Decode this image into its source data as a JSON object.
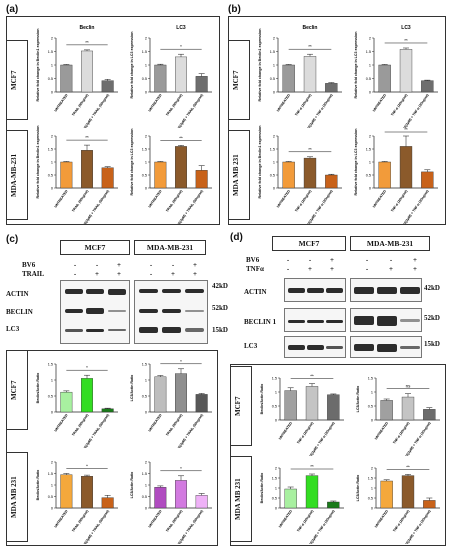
{
  "figure": {
    "panel_labels": {
      "a": "(a)",
      "b": "(b)",
      "c": "(c)",
      "d": "(d)"
    },
    "rows": {
      "mcf7": "MCF7",
      "mda_dash": "MDA-MB-231",
      "mda_space": "MDA MB 231"
    },
    "kd": {
      "k42": "42kD",
      "k52": "52kD",
      "k15": "15kD"
    },
    "blot_labels": {
      "actin": "ACTIN",
      "beclin": "BECLIN",
      "beclin1": "BECLIN 1",
      "lc3": "LC3",
      "bv6": "BV6",
      "trail": "TRAIL",
      "tnfa": "TNFα"
    },
    "blot_headers": {
      "c_left": "MCF7",
      "c_right": "MDA-MB-231",
      "d_left": "MCF7",
      "d_right": "MDA-MB-231"
    },
    "signs": {
      "plus": "+",
      "minus": "-"
    }
  },
  "chart_data": [
    {
      "id": "a_mcf7_beclin",
      "type": "bar",
      "title": "Beclin",
      "ylabel": "Relative fold change in Beclin1 expression",
      "categories": [
        "UNTREATED",
        "TRAIL (50ng/ml)",
        "BV6(2µM) + TRAIL (50ng/ml)"
      ],
      "values": [
        1.0,
        1.52,
        0.42
      ],
      "errors": [
        0.02,
        0.04,
        0.05
      ],
      "colors": [
        "#9a9a9a",
        "#dcdcdc",
        "#6e6e6e"
      ],
      "ylim": [
        0,
        2
      ],
      "sig": "**"
    },
    {
      "id": "a_mcf7_lc3",
      "type": "bar",
      "title": "LC3",
      "ylabel": "Relative fold change in LC3 expression",
      "categories": [
        "UNTREATED",
        "TRAIL (50ng/ml)",
        "BV6(2µM) + TRAIL (50ng/ml)"
      ],
      "values": [
        1.0,
        1.3,
        0.58
      ],
      "errors": [
        0.03,
        0.1,
        0.1
      ],
      "colors": [
        "#9a9a9a",
        "#dcdcdc",
        "#6e6e6e"
      ],
      "ylim": [
        0,
        2
      ],
      "sig": "*"
    },
    {
      "id": "a_mda_beclin",
      "type": "bar",
      "title": "",
      "ylabel": "Relative fold change in Beclin1 expression",
      "categories": [
        "UNTREATED",
        "TRAIL (50ng/ml)",
        "BV6(2µM) + TRAIL (50ng/ml)"
      ],
      "values": [
        1.0,
        1.45,
        0.78
      ],
      "errors": [
        0.02,
        0.2,
        0.04
      ],
      "colors": [
        "#f29b3a",
        "#8b5a2b",
        "#c8621a"
      ],
      "ylim": [
        0,
        2
      ],
      "sig": "**"
    },
    {
      "id": "a_mda_lc3",
      "type": "bar",
      "title": "",
      "ylabel": "Relative fold change in LC3 expression",
      "categories": [
        "UNTREATED",
        "TRAIL (50ng/ml)",
        "BV6(2µM) + TRAIL (50ng/ml)"
      ],
      "values": [
        1.0,
        1.6,
        0.68
      ],
      "errors": [
        0.02,
        0.04,
        0.18
      ],
      "colors": [
        "#f29b3a",
        "#8b5a2b",
        "#c8621a"
      ],
      "ylim": [
        0,
        2
      ],
      "sig": "**"
    },
    {
      "id": "b_mcf7_beclin",
      "type": "bar",
      "title": "Beclin",
      "ylabel": "Relative fold change in Beclin1 expression",
      "categories": [
        "UNTREATED",
        "TNF-α (20ng/ml)",
        "BV6(2µM) + TNF-α (20ng/ml)"
      ],
      "values": [
        1.0,
        1.32,
        0.32
      ],
      "errors": [
        0.02,
        0.08,
        0.03
      ],
      "colors": [
        "#9a9a9a",
        "#dcdcdc",
        "#6e6e6e"
      ],
      "ylim": [
        0,
        2
      ],
      "sig": "**"
    },
    {
      "id": "b_mcf7_lc3",
      "type": "bar",
      "title": "LC3",
      "ylabel": "Relative fold change in LC3 expression",
      "categories": [
        "UNTREATED",
        "TNF-α (20ng/ml)",
        "BV6(2µM) + TNF-α (20ng/ml)"
      ],
      "values": [
        1.0,
        1.58,
        0.42
      ],
      "errors": [
        0.02,
        0.05,
        0.02
      ],
      "colors": [
        "#9a9a9a",
        "#dcdcdc",
        "#6e6e6e"
      ],
      "ylim": [
        0,
        2
      ],
      "sig": "**"
    },
    {
      "id": "b_mda_beclin",
      "type": "bar",
      "title": "",
      "ylabel": "Relative fold change in Beclin1 expression",
      "categories": [
        "UNTREATED",
        "TNF-α (20ng/ml)",
        "BV6(2µM) + TNF-α (20ng/ml)"
      ],
      "values": [
        1.0,
        1.15,
        0.5
      ],
      "errors": [
        0.02,
        0.05,
        0.03
      ],
      "colors": [
        "#f29b3a",
        "#8b5a2b",
        "#c8621a"
      ],
      "ylim": [
        0,
        2
      ],
      "sig": "**"
    },
    {
      "id": "b_mda_lc3",
      "type": "bar",
      "title": "",
      "ylabel": "Relative fold change in LC3 expression",
      "categories": [
        "UNTREATED",
        "TNF-α (20ng/ml)",
        "BV6(2µM) + TNF-α (20ng/ml)"
      ],
      "values": [
        1.0,
        1.6,
        0.62
      ],
      "errors": [
        0.02,
        0.4,
        0.08
      ],
      "colors": [
        "#f29b3a",
        "#8b5a2b",
        "#c8621a"
      ],
      "ylim": [
        0,
        2
      ],
      "sig": "**"
    },
    {
      "id": "c_mcf7_beclin",
      "type": "bar",
      "title": "",
      "ylabel": "Beclin/Actin Ratio",
      "categories": [
        "UNTREATED",
        "TRAIL (50ng/ml)",
        "BV6(2µM) + TRAIL (50ng/ml)"
      ],
      "values": [
        0.62,
        1.05,
        0.1
      ],
      "errors": [
        0.04,
        0.1,
        0.02
      ],
      "colors": [
        "#a8f0a0",
        "#33dd22",
        "#1a7a1a"
      ],
      "ylim": [
        0,
        1.5
      ],
      "sig": "*"
    },
    {
      "id": "c_mcf7_lc3",
      "type": "bar",
      "title": "",
      "ylabel": "LC3/Actin Ratio",
      "categories": [
        "UNTREATED",
        "TRAIL (50ng/ml)",
        "BV6(2µM) + TRAIL (50ng/ml)"
      ],
      "values": [
        1.1,
        1.2,
        0.55
      ],
      "errors": [
        0.04,
        0.15,
        0.03
      ],
      "colors": [
        "#bdbdbd",
        "#8f8f8f",
        "#585858"
      ],
      "ylim": [
        0,
        1.5
      ],
      "sig": "*"
    },
    {
      "id": "c_mda_beclin",
      "type": "bar",
      "title": "",
      "ylabel": "Beclin/Actin Ratio",
      "categories": [
        "UNTREATED",
        "TRAIL (50ng/ml)",
        "BV6(2µM) + TRAIL (50ng/ml)"
      ],
      "values": [
        1.45,
        1.38,
        0.45
      ],
      "errors": [
        0.05,
        0.05,
        0.1
      ],
      "colors": [
        "#f4a83c",
        "#8b5a2b",
        "#c8621a"
      ],
      "ylim": [
        0,
        2
      ],
      "sig": "*"
    },
    {
      "id": "c_mda_lc3",
      "type": "bar",
      "title": "",
      "ylabel": "LC3/Actin Ratio",
      "categories": [
        "UNTREATED",
        "TRAIL (50ng/ml)",
        "BV6(2µM) + TRAIL (50ng/ml)"
      ],
      "values": [
        0.9,
        1.2,
        0.55
      ],
      "errors": [
        0.06,
        0.2,
        0.08
      ],
      "colors": [
        "#b04cc0",
        "#d27ae0",
        "#efb2f7"
      ],
      "ylim": [
        0,
        2
      ],
      "sig": "*"
    },
    {
      "id": "d_mcf7_beclin",
      "type": "bar",
      "title": "",
      "ylabel": "Beclin/Actin Ratio",
      "categories": [
        "UNTREATED",
        "TNF-α (20ng/ml)",
        "BV6(2µM) + TNF-α (20ng/ml)"
      ],
      "values": [
        1.05,
        1.2,
        0.9
      ],
      "errors": [
        0.1,
        0.1,
        0.03
      ],
      "colors": [
        "#a0a0a0",
        "#c4c4c4",
        "#6c6c6c"
      ],
      "ylim": [
        0,
        1.5
      ],
      "sig": "**"
    },
    {
      "id": "d_mcf7_lc3",
      "type": "bar",
      "title": "",
      "ylabel": "LC3/Actin Ratio",
      "categories": [
        "UNTREATED",
        "TNF-α (20ng/ml)",
        "BV6(2µM) + TNF-α (20ng/ml)"
      ],
      "values": [
        0.7,
        0.82,
        0.38
      ],
      "errors": [
        0.05,
        0.12,
        0.06
      ],
      "colors": [
        "#a0a0a0",
        "#c4c4c4",
        "#6c6c6c"
      ],
      "ylim": [
        0,
        1.5
      ],
      "sig": "ns"
    },
    {
      "id": "d_mda_beclin",
      "type": "bar",
      "title": "",
      "ylabel": "Beclin/Actin Ratio",
      "categories": [
        "UNTREATED",
        "TNF-α (20ng/ml)",
        "BV6(2µM) + TNF-α (20ng/ml)"
      ],
      "values": [
        0.95,
        1.62,
        0.3
      ],
      "errors": [
        0.1,
        0.08,
        0.05
      ],
      "colors": [
        "#a8f0a0",
        "#33dd22",
        "#1a7a1a"
      ],
      "ylim": [
        0,
        2
      ],
      "sig": "**"
    },
    {
      "id": "d_mda_lc3",
      "type": "bar",
      "title": "",
      "ylabel": "LC3/Actin Ratio",
      "categories": [
        "UNTREATED",
        "TNF-α (20ng/ml)",
        "BV6(2µM) + TNF-α (20ng/ml)"
      ],
      "values": [
        1.35,
        1.62,
        0.38
      ],
      "errors": [
        0.06,
        0.06,
        0.12
      ],
      "colors": [
        "#f4a83c",
        "#8b5a2b",
        "#c8621a"
      ],
      "ylim": [
        0,
        2
      ],
      "sig": "**"
    }
  ]
}
